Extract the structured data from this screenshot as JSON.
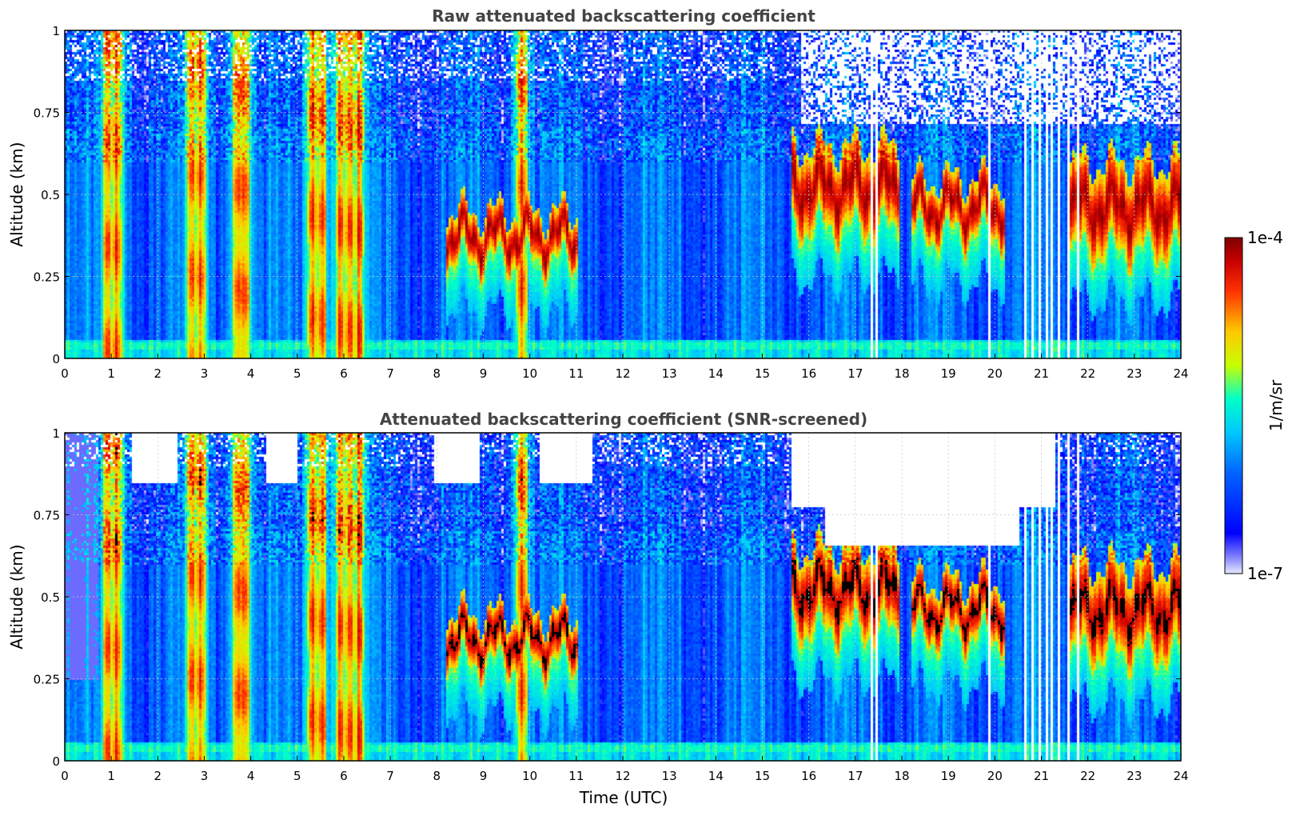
{
  "chart_data": [
    {
      "type": "heatmap",
      "title": "Raw attenuated backscattering coefficient",
      "xlabel": "",
      "ylabel": "Altitude (km)",
      "xlim": [
        0,
        24
      ],
      "ylim": [
        0,
        1
      ],
      "x_ticks": [
        "0",
        "1",
        "2",
        "3",
        "4",
        "5",
        "6",
        "7",
        "8",
        "9",
        "10",
        "11",
        "12",
        "13",
        "14",
        "15",
        "16",
        "17",
        "18",
        "19",
        "20",
        "21",
        "22",
        "23",
        "24"
      ],
      "y_ticks": [
        "0",
        "0.25",
        "0.5",
        "0.75",
        "1"
      ],
      "grid": true,
      "screened": false
    },
    {
      "type": "heatmap",
      "title": "Attenuated backscattering coefficient (SNR-screened)",
      "xlabel": "Time (UTC)",
      "ylabel": "Altitude (km)",
      "xlim": [
        0,
        24
      ],
      "ylim": [
        0,
        1
      ],
      "x_ticks": [
        "0",
        "1",
        "2",
        "3",
        "4",
        "5",
        "6",
        "7",
        "8",
        "9",
        "10",
        "11",
        "12",
        "13",
        "14",
        "15",
        "16",
        "17",
        "18",
        "19",
        "20",
        "21",
        "22",
        "23",
        "24"
      ],
      "y_ticks": [
        "0",
        "0.25",
        "0.5",
        "0.75",
        "1"
      ],
      "grid": true,
      "screened": true
    }
  ],
  "colorbar": {
    "label": "1/m/sr",
    "min_label": "1e-7",
    "max_label": "1e-4",
    "scale": "log",
    "colormap": [
      "#e8e8ff",
      "#0000ff",
      "#0064ff",
      "#00c8ff",
      "#00ffc8",
      "#c8ff00",
      "#ffc800",
      "#ff3200",
      "#c80000",
      "#7f0000"
    ]
  },
  "features": {
    "vertical_plumes_utc": [
      0.9,
      1.1,
      2.7,
      2.9,
      3.7,
      3.85,
      5.3,
      5.5,
      5.9,
      6.1,
      6.3,
      9.8
    ],
    "cloud_layer_segments": [
      {
        "from": 8.2,
        "to": 11.0,
        "base_km": 0.3,
        "top_km": 0.45
      },
      {
        "from": 15.6,
        "to": 17.9,
        "base_km": 0.4,
        "top_km": 0.65
      },
      {
        "from": 18.2,
        "to": 20.2,
        "base_km": 0.38,
        "top_km": 0.55
      },
      {
        "from": 21.6,
        "to": 24.0,
        "base_km": 0.33,
        "top_km": 0.6
      }
    ],
    "data_gaps_utc": [
      17.35,
      17.45,
      19.85,
      20.65,
      20.8,
      20.95,
      21.1,
      21.2,
      21.35,
      21.55,
      21.75
    ]
  }
}
